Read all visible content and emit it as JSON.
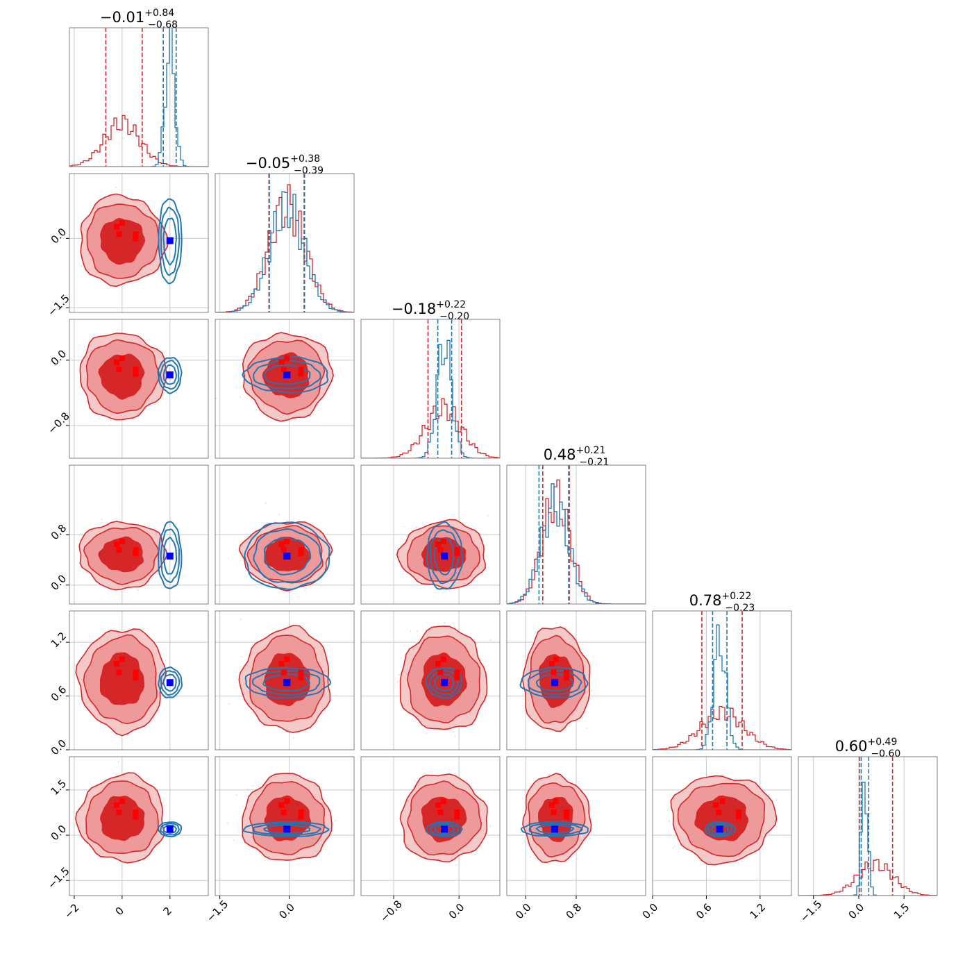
{
  "chart_data": {
    "type": "corner",
    "parameters": 6,
    "colors": {
      "red": "#d62728",
      "red_fill_outer": "#ee9a9b",
      "red_fill_inner": "#d62728",
      "blue": "#1f77b4",
      "truth_red": "#ff0000",
      "truth_blue": "#0000ff",
      "grid": "#c8c8c8",
      "frame": "#808080"
    },
    "titles": [
      {
        "value": "−0.01",
        "plus": "+0.84",
        "minus": "−0.68"
      },
      {
        "value": "−0.05",
        "plus": "+0.38",
        "minus": "−0.39"
      },
      {
        "value": "−0.18",
        "plus": "+0.22",
        "minus": "−0.20"
      },
      {
        "value": "0.48",
        "plus": "+0.21",
        "minus": "−0.21"
      },
      {
        "value": "0.78",
        "plus": "+0.22",
        "minus": "−0.23"
      },
      {
        "value": "0.60",
        "plus": "+0.49",
        "minus": "−0.60"
      }
    ],
    "ranges": [
      [
        -2.2,
        3.6
      ],
      [
        -1.6,
        1.4
      ],
      [
        -1.2,
        0.5
      ],
      [
        -0.3,
        1.9
      ],
      [
        0.0,
        1.55
      ],
      [
        -2.0,
        2.6
      ]
    ],
    "ticks": [
      {
        "values": [
          -2,
          0,
          2
        ],
        "labels": [
          "−2",
          "0",
          "2"
        ]
      },
      {
        "values": [
          -1.5,
          0.0
        ],
        "labels": [
          "−1.5",
          "0.0"
        ]
      },
      {
        "values": [
          -0.8,
          0.0
        ],
        "labels": [
          "−0.8",
          "0.0"
        ]
      },
      {
        "values": [
          0.0,
          0.8
        ],
        "labels": [
          "0.0",
          "0.8"
        ]
      },
      {
        "values": [
          0.0,
          0.6,
          1.2
        ],
        "labels": [
          "0.0",
          "0.6",
          "1.2"
        ]
      },
      {
        "values": [
          -1.5,
          0.0,
          1.5
        ],
        "labels": [
          "−1.5",
          "0.0",
          "1.5"
        ]
      }
    ],
    "series": [
      {
        "color": "red",
        "centers": [
          0.0,
          -0.05,
          -0.19,
          0.48,
          0.78,
          0.55
        ],
        "widths": [
          0.75,
          0.4,
          0.22,
          0.22,
          0.24,
          0.6
        ],
        "quantiles": [
          [
            -0.68,
            0.84
          ],
          [
            -0.44,
            0.33
          ],
          [
            -0.38,
            0.03
          ],
          [
            0.27,
            0.69
          ],
          [
            0.55,
            1.0
          ],
          [
            0.02,
            1.12
          ]
        ],
        "hist_heights": [
          0.35,
          0.85,
          0.4,
          0.85,
          0.3,
          0.25
        ]
      },
      {
        "color": "blue",
        "centers": [
          2.0,
          -0.05,
          -0.18,
          0.46,
          0.75,
          0.2
        ],
        "widths": [
          0.2,
          0.38,
          0.09,
          0.22,
          0.07,
          0.1
        ],
        "quantiles": [
          [
            1.72,
            2.26
          ],
          [
            -0.43,
            0.32
          ],
          [
            -0.26,
            -0.09
          ],
          [
            0.21,
            0.68
          ],
          [
            0.67,
            0.83
          ],
          [
            0.08,
            0.33
          ]
        ],
        "hist_heights": [
          0.97,
          0.85,
          0.92,
          0.8,
          0.88,
          0.97
        ]
      }
    ],
    "truths": {
      "red_points": [
        [
          -0.3,
          0.75
        ],
        [
          0.0,
          0.96
        ],
        [
          0.76,
          0.35
        ],
        [
          0.75,
          0.1
        ],
        [
          -0.17,
          0.35
        ]
      ],
      "blue_point": [
        2.0,
        -0.05,
        -0.18,
        0.46,
        0.75,
        0.2
      ]
    }
  }
}
